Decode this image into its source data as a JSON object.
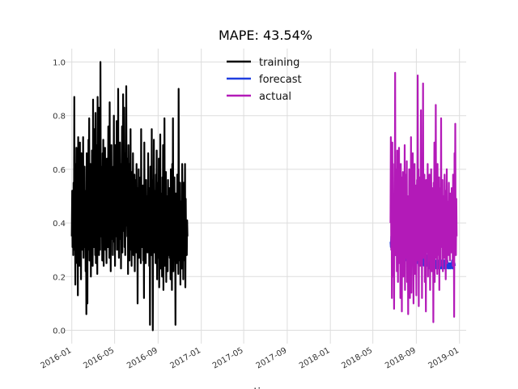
{
  "chart_data": {
    "type": "line",
    "title": "MAPE: 43.54%",
    "xlabel": "time",
    "ylabel": "",
    "ylim": [
      -0.05,
      1.05
    ],
    "xlim": [
      "2015-12-12",
      "2019-01-20"
    ],
    "y_ticks": [
      0.0,
      0.2,
      0.4,
      0.6,
      0.8,
      1.0
    ],
    "y_tick_labels": [
      "0.0",
      "0.2",
      "0.4",
      "0.6",
      "0.8",
      "1.0"
    ],
    "x_ticks": [
      "2016-01-01",
      "2016-05-01",
      "2016-09-01",
      "2017-01-01",
      "2017-05-01",
      "2017-09-01",
      "2018-01-01",
      "2018-05-01",
      "2018-09-01",
      "2019-01-01"
    ],
    "x_tick_labels": [
      "2016-01",
      "2016-05",
      "2016-09",
      "2017-01",
      "2017-05",
      "2017-09",
      "2018-01",
      "2018-05",
      "2018-09",
      "2019-01"
    ],
    "grid": true,
    "legend_position": "top-center",
    "series": [
      {
        "name": "training",
        "color": "#000000",
        "start": "2016-01-01",
        "step_days": 1,
        "values": [
          0.35,
          0.52,
          0.31,
          0.45,
          0.28,
          0.55,
          0.38,
          0.87,
          0.3,
          0.48,
          0.17,
          0.62,
          0.34,
          0.68,
          0.42,
          0.25,
          0.6,
          0.13,
          0.72,
          0.36,
          0.55,
          0.24,
          0.5,
          0.7,
          0.29,
          0.46,
          0.19,
          0.66,
          0.41,
          0.3,
          0.58,
          0.33,
          0.72,
          0.27,
          0.44,
          0.31,
          0.61,
          0.38,
          0.52,
          0.22,
          0.49,
          0.06,
          0.66,
          0.35,
          0.1,
          0.58,
          0.3,
          0.71,
          0.43,
          0.79,
          0.26,
          0.54,
          0.36,
          0.62,
          0.2,
          0.48,
          0.32,
          0.67,
          0.39,
          0.24,
          0.86,
          0.45,
          0.31,
          0.75,
          0.33,
          0.57,
          0.28,
          0.81,
          0.25,
          0.69,
          0.4,
          0.59,
          0.21,
          0.87,
          0.36,
          0.5,
          0.83,
          0.28,
          0.64,
          0.55,
          0.3,
          1.0,
          0.42,
          0.61,
          0.35,
          0.47,
          0.26,
          0.66,
          0.4,
          0.71,
          0.24,
          0.58,
          0.49,
          0.33,
          0.68,
          0.3,
          0.52,
          0.44,
          0.25,
          0.64,
          0.38,
          0.58,
          0.31,
          0.76,
          0.42,
          0.5,
          0.27,
          0.85,
          0.36,
          0.62,
          0.22,
          0.55,
          0.69,
          0.34,
          0.41,
          0.58,
          0.28,
          0.61,
          0.46,
          0.8,
          0.33,
          0.57,
          0.24,
          0.69,
          0.42,
          0.51,
          0.35,
          0.78,
          0.3,
          0.63,
          0.37,
          0.9,
          0.48,
          0.27,
          0.59,
          0.41,
          0.7,
          0.34,
          0.55,
          0.23,
          0.62,
          0.45,
          0.76,
          0.29,
          0.6,
          0.88,
          0.37,
          0.52,
          0.83,
          0.31,
          0.66,
          0.28,
          0.57,
          0.42,
          0.91,
          0.39,
          0.47,
          0.35,
          0.64,
          0.21,
          0.69,
          0.44,
          0.53,
          0.26,
          0.62,
          0.3,
          0.75,
          0.38,
          0.52,
          0.24,
          0.59,
          0.41,
          0.35,
          0.66,
          0.28,
          0.49,
          0.42,
          0.58,
          0.22,
          0.56,
          0.34,
          0.45,
          0.29,
          0.62,
          0.4,
          0.53,
          0.1,
          0.48,
          0.36,
          0.6,
          0.27,
          0.51,
          0.44,
          0.33,
          0.57,
          0.25,
          0.75,
          0.38,
          0.45,
          0.31,
          0.42,
          0.54,
          0.26,
          0.48,
          0.12,
          0.7,
          0.34,
          0.41,
          0.52,
          0.25,
          0.56,
          0.3,
          0.43,
          0.5,
          0.29,
          0.38,
          0.66,
          0.31,
          0.46,
          0.24,
          0.53,
          0.02,
          0.61,
          0.35,
          0.44,
          0.28,
          0.75,
          0.33,
          0.48,
          0.0,
          0.56,
          0.37,
          0.71,
          0.29,
          0.52,
          0.34,
          0.43,
          0.25,
          0.58,
          0.31,
          0.67,
          0.19,
          0.47,
          0.36,
          0.55,
          0.27,
          0.64,
          0.16,
          0.42,
          0.33,
          0.73,
          0.23,
          0.51,
          0.38,
          0.45,
          0.2,
          0.57,
          0.34,
          0.69,
          0.15,
          0.48,
          0.3,
          0.79,
          0.24,
          0.42,
          0.36,
          0.59,
          0.18,
          0.5,
          0.32,
          0.45,
          0.22,
          0.56,
          0.28,
          0.39,
          0.34,
          0.53,
          0.27,
          0.41,
          0.19,
          0.6,
          0.35,
          0.44,
          0.15,
          0.62,
          0.3,
          0.79,
          0.22,
          0.48,
          0.26,
          0.57,
          0.33,
          0.4,
          0.02,
          0.51,
          0.28,
          0.44,
          0.25,
          0.58,
          0.32,
          0.39,
          0.21,
          0.9,
          0.35,
          0.46,
          0.26,
          0.55,
          0.17,
          0.48,
          0.31,
          0.42,
          0.23,
          0.62,
          0.36,
          0.45,
          0.19,
          0.55,
          0.3,
          0.47,
          0.26,
          0.62,
          0.16,
          0.49,
          0.33,
          0.38,
          0.28,
          0.41,
          0.35
        ]
      },
      {
        "name": "forecast",
        "color": "#1f3ee0",
        "start": "2018-06-20",
        "step_days": 1,
        "values": [
          0.33,
          0.31,
          0.35,
          0.3,
          0.34,
          0.29,
          0.36,
          0.32,
          0.3,
          0.34,
          0.31,
          0.37,
          0.3,
          0.33,
          0.28,
          0.35,
          0.32,
          0.29,
          0.34,
          0.31,
          0.36,
          0.3,
          0.33,
          0.35,
          0.29,
          0.32,
          0.31,
          0.34,
          0.3,
          0.27,
          0.33,
          0.31,
          0.3,
          0.28,
          0.32,
          0.29,
          0.31,
          0.33,
          0.3,
          0.27,
          0.32,
          0.29,
          0.3,
          0.28,
          0.31,
          0.26,
          0.33,
          0.29,
          0.3,
          0.27,
          0.32,
          0.28,
          0.3,
          0.25,
          0.31,
          0.28,
          0.29,
          0.26,
          0.3,
          0.27,
          0.31,
          0.25,
          0.29,
          0.27,
          0.3,
          0.26,
          0.28,
          0.25,
          0.3,
          0.27,
          0.29,
          0.24,
          0.3,
          0.26,
          0.28,
          0.27,
          0.25,
          0.29,
          0.26,
          0.28,
          0.24,
          0.29,
          0.26,
          0.27,
          0.25,
          0.28,
          0.26,
          0.3,
          0.25,
          0.27,
          0.24,
          0.28,
          0.26,
          0.25,
          0.27,
          0.24,
          0.28,
          0.25,
          0.26,
          0.24,
          0.27,
          0.25,
          0.28,
          0.24,
          0.26,
          0.25,
          0.27,
          0.24,
          0.26,
          0.23,
          0.27,
          0.25,
          0.26,
          0.24,
          0.27,
          0.25,
          0.24,
          0.26,
          0.23,
          0.25,
          0.24,
          0.26,
          0.23,
          0.25,
          0.24,
          0.26,
          0.23,
          0.25,
          0.24,
          0.26,
          0.23,
          0.24,
          0.25,
          0.24,
          0.26,
          0.23,
          0.25,
          0.24,
          0.23,
          0.25,
          0.24,
          0.23,
          0.25,
          0.24,
          0.26,
          0.23,
          0.24,
          0.25,
          0.24,
          0.23,
          0.25,
          0.24,
          0.26,
          0.23,
          0.25,
          0.24,
          0.25,
          0.23,
          0.24,
          0.25,
          0.24,
          0.26,
          0.23,
          0.24,
          0.25,
          0.24,
          0.23,
          0.25,
          0.24,
          0.25,
          0.23,
          0.24,
          0.25,
          0.24,
          0.26,
          0.23,
          0.25,
          0.24,
          0.25,
          0.23,
          0.24,
          0.25,
          0.24
        ]
      },
      {
        "name": "actual",
        "color": "#b31ab8",
        "start": "2018-06-20",
        "step_days": 1,
        "values": [
          0.4,
          0.72,
          0.3,
          0.55,
          0.12,
          0.7,
          0.38,
          0.62,
          0.2,
          0.5,
          0.08,
          0.45,
          0.33,
          0.96,
          0.28,
          0.6,
          0.35,
          0.47,
          0.22,
          0.67,
          0.41,
          0.18,
          0.55,
          0.3,
          0.68,
          0.25,
          0.52,
          0.44,
          0.12,
          0.62,
          0.35,
          0.57,
          0.07,
          0.48,
          0.31,
          0.59,
          0.2,
          0.42,
          0.52,
          0.28,
          0.69,
          0.15,
          0.45,
          0.36,
          0.58,
          0.27,
          0.63,
          0.18,
          0.5,
          0.34,
          0.06,
          0.47,
          0.29,
          0.6,
          0.38,
          0.12,
          0.55,
          0.31,
          0.72,
          0.14,
          0.44,
          0.53,
          0.25,
          0.66,
          0.37,
          0.1,
          0.51,
          0.29,
          0.62,
          0.21,
          0.47,
          0.38,
          0.54,
          0.13,
          0.43,
          0.56,
          0.32,
          0.95,
          0.26,
          0.6,
          0.09,
          0.49,
          0.35,
          0.57,
          0.24,
          0.44,
          0.82,
          0.3,
          0.55,
          0.12,
          0.61,
          0.38,
          0.92,
          0.27,
          0.46,
          0.33,
          0.58,
          0.18,
          0.5,
          0.39,
          0.07,
          0.56,
          0.29,
          0.47,
          0.35,
          0.62,
          0.2,
          0.44,
          0.52,
          0.26,
          0.58,
          0.37,
          0.15,
          0.49,
          0.3,
          0.6,
          0.41,
          0.22,
          0.53,
          0.34,
          0.46,
          0.03,
          0.55,
          0.32,
          0.7,
          0.18,
          0.48,
          0.37,
          0.84,
          0.27,
          0.52,
          0.39,
          0.21,
          0.62,
          0.34,
          0.45,
          0.28,
          0.57,
          0.15,
          0.48,
          0.36,
          0.53,
          0.24,
          0.79,
          0.31,
          0.44,
          0.38,
          0.56,
          0.22,
          0.5,
          0.33,
          0.43,
          0.27,
          0.58,
          0.35,
          0.46,
          0.19,
          0.52,
          0.3,
          0.6,
          0.25,
          0.48,
          0.37,
          0.42,
          0.28,
          0.55,
          0.33,
          0.45,
          0.26,
          0.51,
          0.35,
          0.4,
          0.29,
          0.53,
          0.32,
          0.47,
          0.24,
          0.58,
          0.36,
          0.43,
          0.05,
          0.66,
          0.3,
          0.77,
          0.38,
          0.28,
          0.49,
          0.35
        ]
      }
    ]
  }
}
